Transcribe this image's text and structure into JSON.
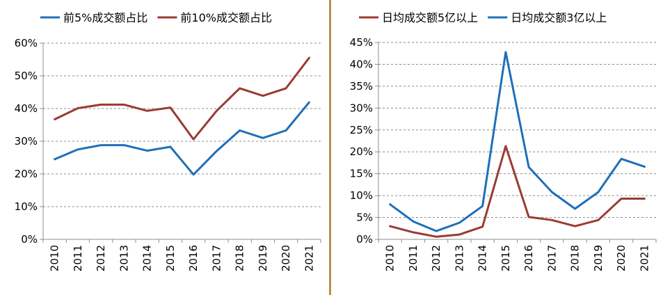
{
  "chart_data": [
    {
      "type": "line",
      "title": "",
      "categories": [
        "2010",
        "2011",
        "2012",
        "2013",
        "2014",
        "2015",
        "2016",
        "2017",
        "2018",
        "2019",
        "2020",
        "2021"
      ],
      "ylim": [
        0,
        60
      ],
      "yticks": [
        0,
        10,
        20,
        30,
        40,
        50,
        60
      ],
      "ytick_labels": [
        "0%",
        "10%",
        "20%",
        "30%",
        "40%",
        "50%",
        "60%"
      ],
      "grid": "horizontal dashed",
      "legend_position": "top",
      "series": [
        {
          "name": "前5%成交额占比",
          "color": "#1f6fb8",
          "values": [
            24.5,
            27.5,
            28.8,
            28.8,
            27.1,
            28.3,
            19.8,
            27,
            33.3,
            31,
            33.3,
            41.9
          ]
        },
        {
          "name": "前10%成交额占比",
          "color": "#9b3a34",
          "values": [
            36.7,
            40.1,
            41.2,
            41.2,
            39.3,
            40.3,
            30.6,
            39.3,
            46.2,
            43.9,
            46.2,
            55.5
          ]
        }
      ]
    },
    {
      "type": "line",
      "title": "",
      "categories": [
        "2010",
        "2011",
        "2012",
        "2013",
        "2014",
        "2015",
        "2016",
        "2017",
        "2018",
        "2019",
        "2020",
        "2021"
      ],
      "ylim": [
        0,
        45
      ],
      "yticks": [
        0,
        5,
        10,
        15,
        20,
        25,
        30,
        35,
        40,
        45
      ],
      "ytick_labels": [
        "0%",
        "5%",
        "10%",
        "15%",
        "20%",
        "25%",
        "30%",
        "35%",
        "40%",
        "45%"
      ],
      "grid": "horizontal dashed",
      "legend_position": "top",
      "series": [
        {
          "name": "日均成交额5亿以上",
          "color": "#9b3a34",
          "values": [
            3,
            1.6,
            0.6,
            1.1,
            2.9,
            21.3,
            5.1,
            4.4,
            3.0,
            4.4,
            9.3,
            9.3
          ]
        },
        {
          "name": "日均成交额3亿以上",
          "color": "#1f6fb8",
          "values": [
            8,
            4.1,
            1.9,
            3.8,
            7.6,
            42.8,
            16.5,
            10.8,
            7.0,
            10.8,
            18.4,
            16.6
          ]
        }
      ]
    }
  ],
  "divider_color": "#b8914a"
}
